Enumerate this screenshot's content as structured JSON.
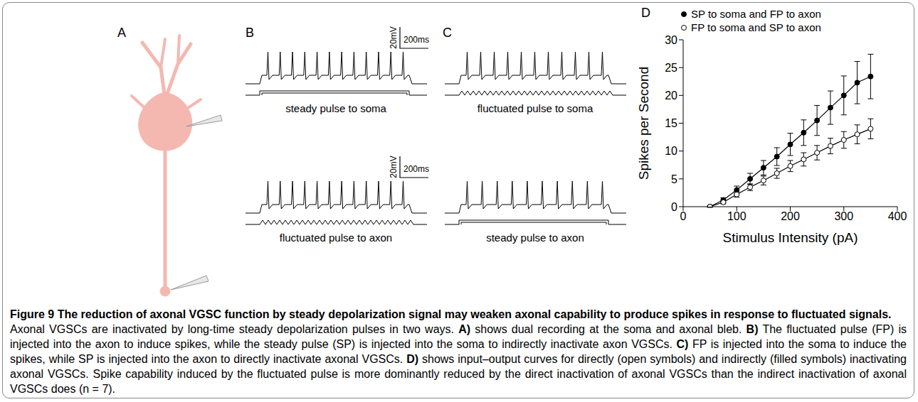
{
  "panels": [
    {
      "letter": "A"
    },
    {
      "letter": "B",
      "traces": [
        {
          "label": "steady pulse to soma",
          "spike_count": 12
        },
        {
          "label": "fluctuated pulse to axon",
          "spike_count": 12
        }
      ],
      "scale_bar": {
        "voltage": "20mV",
        "time": "200ms"
      }
    },
    {
      "letter": "C",
      "traces": [
        {
          "label": "fluctuated pulse to soma",
          "spike_count": 11
        },
        {
          "label": "steady pulse to axon",
          "spike_count": 10
        }
      ]
    },
    {
      "letter": "D"
    }
  ],
  "chart_data": {
    "type": "line",
    "x": [
      50,
      75,
      100,
      125,
      150,
      175,
      200,
      225,
      250,
      275,
      300,
      325,
      350
    ],
    "series": [
      {
        "name": "SP to soma and FP to axon",
        "color": "#000000",
        "marker": "filled",
        "values": [
          0,
          1.2,
          3.0,
          5.0,
          7.0,
          9.0,
          11.2,
          13.3,
          15.5,
          17.8,
          20.0,
          22.3,
          23.4
        ],
        "errors": [
          0.1,
          0.4,
          0.7,
          1.0,
          1.3,
          1.6,
          2.0,
          2.3,
          2.7,
          3.0,
          3.5,
          3.8,
          4.0
        ]
      },
      {
        "name": "FP to soma and SP to axon",
        "color": "#000000",
        "marker": "open",
        "values": [
          0,
          0.8,
          2.2,
          3.5,
          4.7,
          6.0,
          7.3,
          8.5,
          9.7,
          10.9,
          12.0,
          13.0,
          14.0
        ],
        "errors": [
          0.1,
          0.3,
          0.5,
          0.6,
          0.8,
          0.9,
          1.0,
          1.2,
          1.3,
          1.4,
          1.5,
          1.7,
          1.8
        ]
      }
    ],
    "x_label": "Stimulus Intensity (pA)",
    "y_label": "Spikes per Second",
    "xlim": [
      0,
      400
    ],
    "xticks": [
      0,
      100,
      200,
      300,
      400
    ],
    "ylim": [
      0,
      30
    ],
    "yticks": [
      0,
      5,
      10,
      15,
      20,
      25,
      30
    ],
    "grid": false,
    "legend": "top-left"
  },
  "caption": {
    "label": "Figure 9",
    "title": "The reduction of axonal VGSC function by steady depolarization signal may weaken axonal capability to produce spikes in response to fluctuated signals.",
    "body": [
      {
        "text": "Axonal VGSCs are inactivated by long-time steady depolarization pulses in two ways."
      },
      {
        "label": "A)",
        "text": "shows dual recording at the soma and axonal bleb."
      },
      {
        "label": "B)",
        "text": "The fluctuated pulse (FP) is injected into the axon to induce spikes, while the steady pulse (SP) is injected into the soma to indirectly inactivate axon VGSCs."
      },
      {
        "label": "C)",
        "text": "FP is injected into the soma to induce the spikes, while SP is injected into the axon to directly inactivate axonal VGSCs."
      },
      {
        "label": "D)",
        "text": "shows input–output curves for directly (open symbols) and indirectly (filled symbols) inactivating axonal VGSCs. Spike capability induced by the fluctuated pulse is more dominantly reduced by the direct inactivation of axonal VGSCs than the indirect inactivation of axonal VGSCs does (n = 7)."
      }
    ]
  }
}
